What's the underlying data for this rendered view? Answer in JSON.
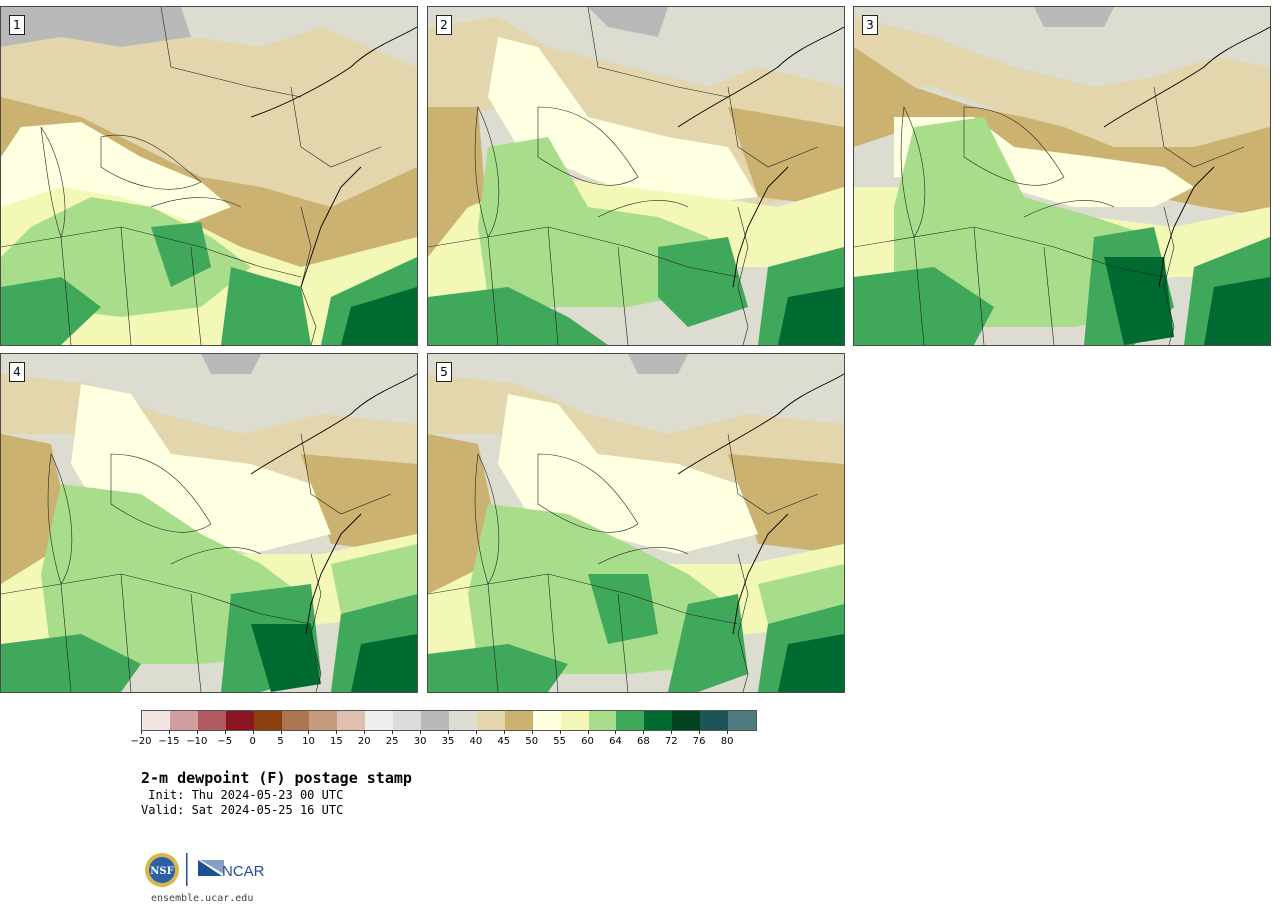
{
  "panels": [
    {
      "label": "1"
    },
    {
      "label": "2"
    },
    {
      "label": "3"
    },
    {
      "label": "4"
    },
    {
      "label": "5"
    }
  ],
  "colorbar": {
    "colors": [
      "#f3e3e3",
      "#d19ea0",
      "#b05a5f",
      "#8b1520",
      "#8c3f0e",
      "#ad7550",
      "#c69b7f",
      "#dfc0b0",
      "#efefef",
      "#dcdcdc",
      "#b9b9b9",
      "#dcdcd0",
      "#e3d5ac",
      "#ccb271",
      "#ffffe1",
      "#f3f8b7",
      "#a8dd8c",
      "#40a85b",
      "#006b31",
      "#00431f",
      "#1d5556",
      "#4d7b7e"
    ],
    "ticks": [
      "−20",
      "−15",
      "−10",
      "−5",
      "0",
      "5",
      "10",
      "15",
      "20",
      "25",
      "30",
      "35",
      "40",
      "45",
      "50",
      "55",
      "60",
      "64",
      "68",
      "72",
      "76",
      "80"
    ]
  },
  "title": "2-m dewpoint (F) postage stamp",
  "init_line": " Init: Thu 2024-05-23 00 UTC",
  "valid_line": "Valid: Sat 2024-05-25 16 UTC",
  "logos": {
    "nsf": "NSF",
    "ncar": "NCAR"
  },
  "site": "ensemble.ucar.edu",
  "map_colors": {
    "ocean_gray": "#dcdcd0",
    "canada_gray": "#b9b9b9",
    "tan": "#e3d5ac",
    "brown": "#ccb271",
    "pale": "#ffffe1",
    "yellow": "#f3f8b7",
    "light_green": "#a8dd8c",
    "green": "#40a85b",
    "dark_green": "#006b31"
  }
}
